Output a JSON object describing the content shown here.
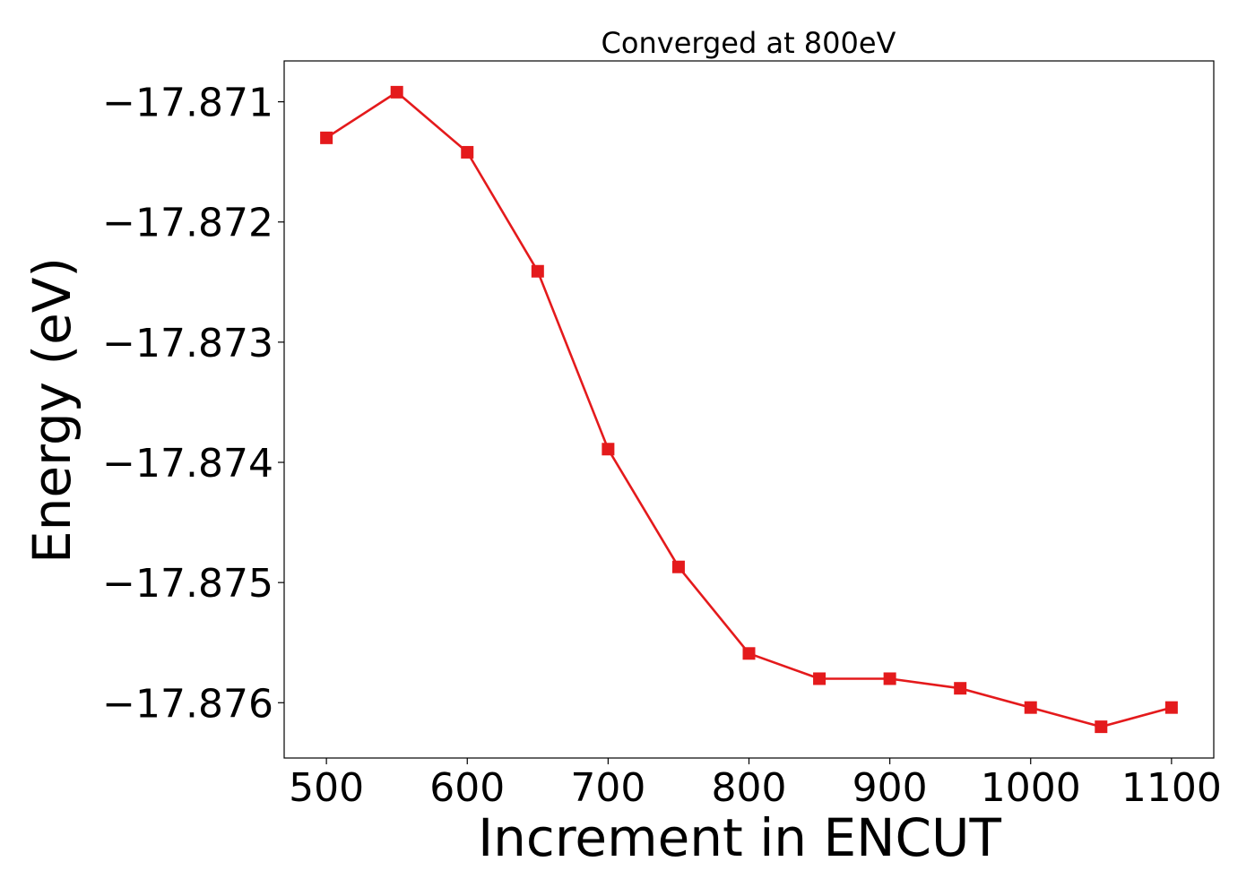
{
  "chart_data": {
    "type": "line",
    "title": "Converged at 800eV",
    "xlabel": "Increment in ENCUT",
    "ylabel": "Energy (eV)",
    "x": [
      500,
      550,
      600,
      650,
      700,
      750,
      800,
      850,
      900,
      950,
      1000,
      1050,
      1100
    ],
    "series": [
      {
        "values": [
          -17.8713,
          -17.87092,
          -17.87142,
          -17.87241,
          -17.87389,
          -17.87487,
          -17.87559,
          -17.8758,
          -17.8758,
          -17.87588,
          -17.87604,
          -17.8762,
          -17.87604
        ],
        "color": "#e41a1c",
        "marker": "square"
      }
    ],
    "xticks": [
      500,
      600,
      700,
      800,
      900,
      1000,
      1100
    ],
    "xtick_labels": [
      "500",
      "600",
      "700",
      "800",
      "900",
      "1000",
      "1100"
    ],
    "yticks": [
      -17.871,
      -17.872,
      -17.873,
      -17.874,
      -17.875,
      -17.876
    ],
    "ytick_labels": [
      "−17.871",
      "−17.872",
      "−17.873",
      "−17.874",
      "−17.875",
      "−17.876"
    ],
    "xlim": [
      470,
      1130
    ],
    "ylim": [
      -17.87646,
      -17.87066
    ],
    "grid": false,
    "legend": false
  }
}
